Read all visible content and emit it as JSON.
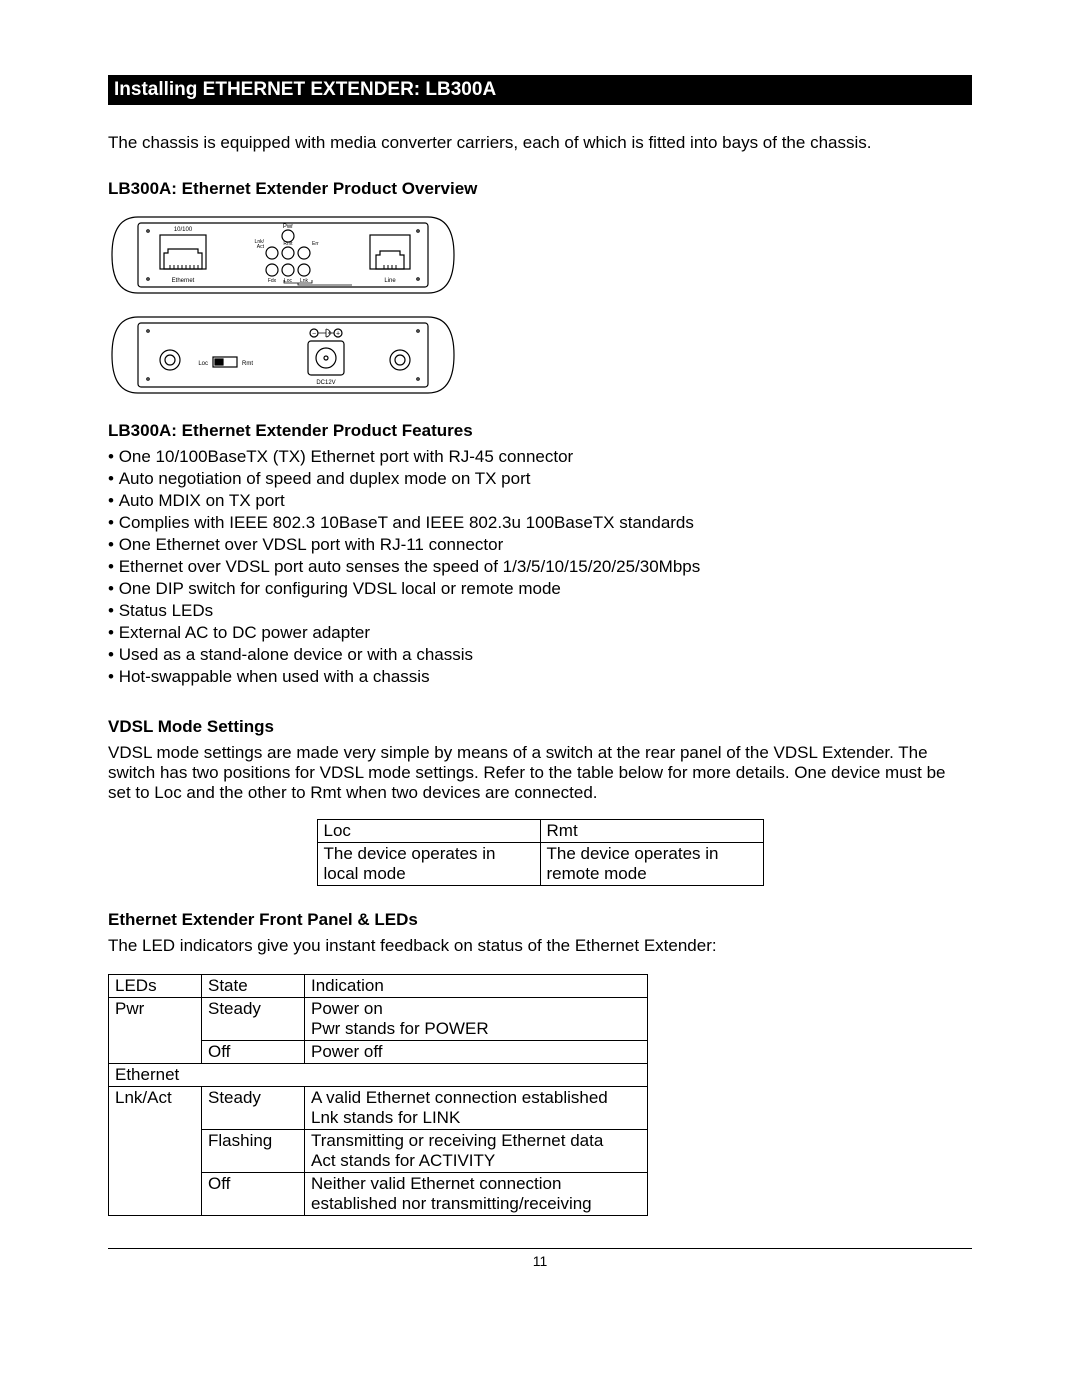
{
  "title_bar": "Installing ETHERNET EXTENDER: LB300A",
  "intro": "The chassis is equipped with media converter carriers, each of which is fitted into bays of the chassis.",
  "overview_heading": "LB300A: Ethernet Extender Product Overview",
  "features_heading": "LB300A: Ethernet Extender Product Features",
  "features": [
    "One 10/100BaseTX (TX) Ethernet port with RJ-45 connector",
    "Auto negotiation of speed and duplex mode on TX port",
    "Auto MDIX on TX port",
    "Complies with IEEE 802.3 10BaseT and IEEE 802.3u 100BaseTX standards",
    "One Ethernet over VDSL port with RJ-11 connector",
    "Ethernet over VDSL port auto senses the speed of 1/3/5/10/15/20/25/30Mbps",
    "One DIP switch for configuring VDSL local or remote mode",
    "Status LEDs",
    "External AC to DC power adapter",
    "Used as a stand-alone device or with a chassis",
    "Hot-swappable when used with a chassis"
  ],
  "vdsl_heading": "VDSL Mode Settings",
  "vdsl_para": "VDSL mode settings are made very simple by means of a switch at the rear panel of the VDSL Extender. The switch has two positions for VDSL mode settings. Refer to the table below for more details. One device must be set to Loc and the other to Rmt when two devices are connected.",
  "mode_table": {
    "loc_label": "Loc",
    "rmt_label": "Rmt",
    "loc_desc": "The device operates in local mode",
    "rmt_desc": "The device operates in remote mode"
  },
  "front_heading": "Ethernet Extender Front Panel & LEDs",
  "front_para": "The LED indicators give you instant feedback on status of the Ethernet Extender:",
  "led_table": {
    "h_leds": "LEDs",
    "h_state": "State",
    "h_indication": "Indication",
    "pwr_label": "Pwr",
    "pwr_steady": "Steady",
    "pwr_on": "Power on\nPwr stands for POWER",
    "pwr_off_state": "Off",
    "pwr_off": "Power off",
    "eth_section": "Ethernet",
    "lnk_label": "Lnk/Act",
    "lnk_steady": "Steady",
    "lnk_steady_ind": "A valid Ethernet connection established\nLnk stands for LINK",
    "lnk_flash": "Flashing",
    "lnk_flash_ind": "Transmitting or receiving Ethernet data\nAct stands for ACTIVITY",
    "lnk_off": "Off",
    "lnk_off_ind": "Neither valid Ethernet connection established nor transmitting/receiving"
  },
  "page_number": "11",
  "diagram": {
    "labels": {
      "top_port": "10/100",
      "ethernet": "Ethernet",
      "line": "Line",
      "pwr": "Pwr",
      "lnk_act": "Lnk/\nAct",
      "rmt": "Rmt",
      "err": "Err",
      "fdx": "Fdx",
      "loc": "Loc",
      "lnk": "Lnk",
      "loc2": "Loc",
      "rmt2": "Rmt",
      "dc12v": "DC12V",
      "minus": "−",
      "plus": "+"
    },
    "colors": {
      "stroke": "#000000",
      "bg": "#ffffff"
    }
  }
}
